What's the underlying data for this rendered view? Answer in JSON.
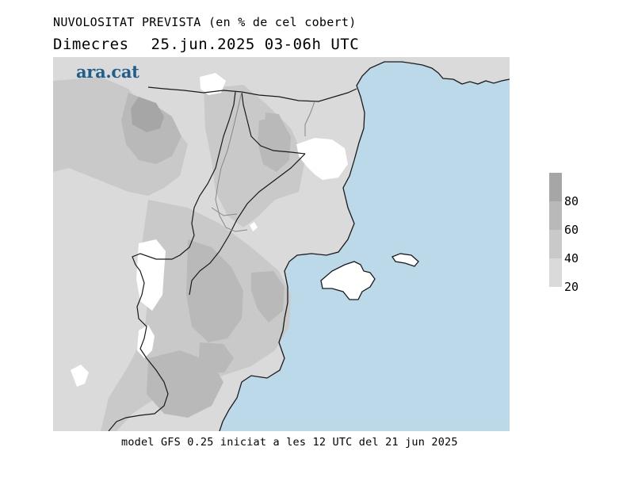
{
  "header": {
    "title": "NUVOLOSITAT PREVISTA (en % de cel cobert)",
    "day": "Dimecres",
    "datetime": "25.jun.2025 03-06h UTC"
  },
  "brand": {
    "logo_text": "ara.cat"
  },
  "footer": {
    "model_info": "model GFS 0.25 iniciat a les 12 UTC del 21 jun 2025"
  },
  "legend": {
    "unit": "% de cel cobert",
    "labels": [
      "80",
      "60",
      "40",
      "20"
    ],
    "classes": [
      {
        "min": 80,
        "max": 100,
        "color": "#a6a6a6"
      },
      {
        "min": 60,
        "max": 80,
        "color": "#b9b9b9"
      },
      {
        "min": 40,
        "max": 60,
        "color": "#c9c9c9"
      },
      {
        "min": 20,
        "max": 40,
        "color": "#dadada"
      }
    ]
  },
  "colors": {
    "sea": "#bcd9ea",
    "land_clear": "#ffffff",
    "coast": "#1a1a1a",
    "border": "#888888"
  }
}
